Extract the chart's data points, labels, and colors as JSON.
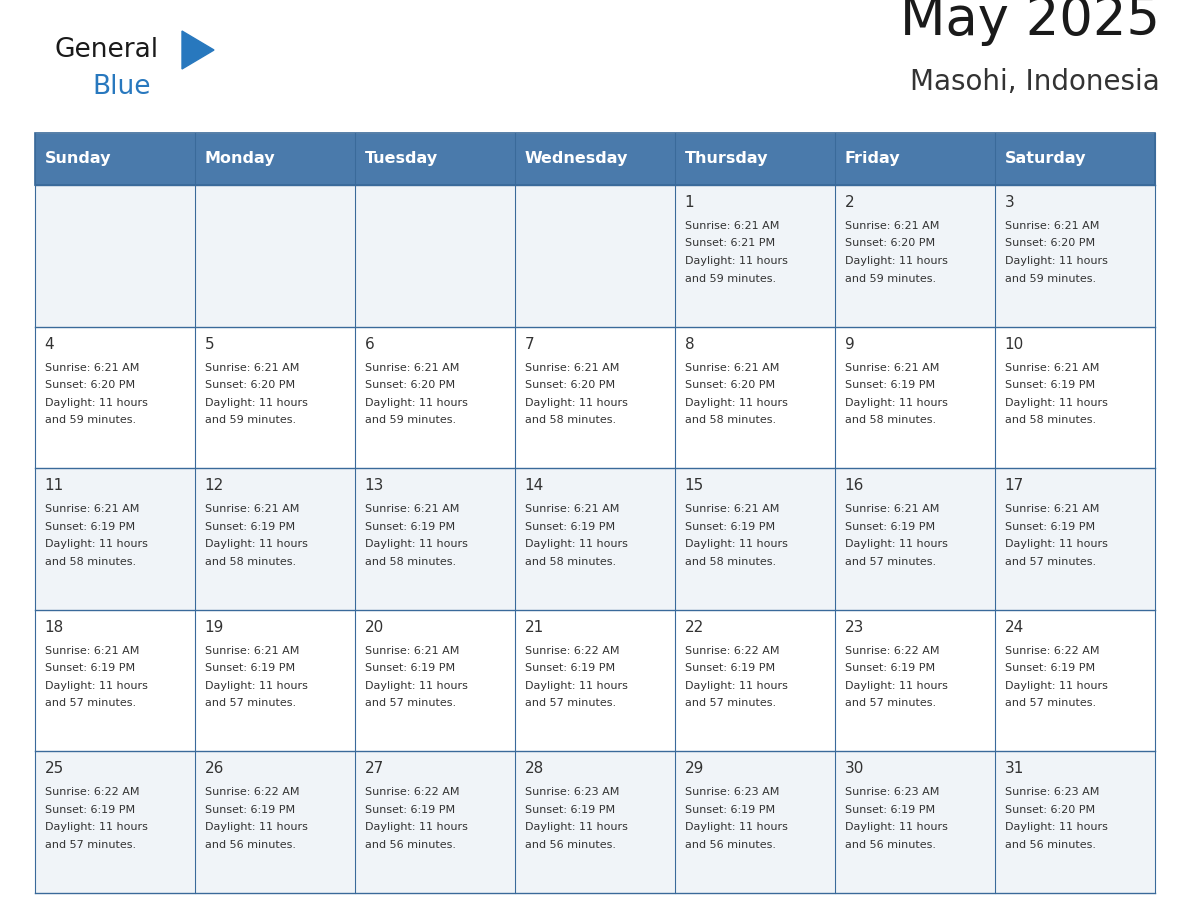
{
  "title": "May 2025",
  "subtitle": "Masohi, Indonesia",
  "days_of_week": [
    "Sunday",
    "Monday",
    "Tuesday",
    "Wednesday",
    "Thursday",
    "Friday",
    "Saturday"
  ],
  "header_bg": "#4a7aab",
  "header_text": "#FFFFFF",
  "row_bg_1": "#f0f4f8",
  "row_bg_2": "#ffffff",
  "cell_text": "#333333",
  "border_color": "#3a6a9a",
  "title_color": "#1a1a1a",
  "subtitle_color": "#333333",
  "logo_text_color": "#1a1a1a",
  "logo_blue_color": "#2878BE",
  "weeks": [
    [
      null,
      null,
      null,
      null,
      {
        "day": 1,
        "sunrise": "6:21 AM",
        "sunset": "6:21 PM",
        "daylight": "11 hours and 59 minutes."
      },
      {
        "day": 2,
        "sunrise": "6:21 AM",
        "sunset": "6:20 PM",
        "daylight": "11 hours and 59 minutes."
      },
      {
        "day": 3,
        "sunrise": "6:21 AM",
        "sunset": "6:20 PM",
        "daylight": "11 hours and 59 minutes."
      }
    ],
    [
      {
        "day": 4,
        "sunrise": "6:21 AM",
        "sunset": "6:20 PM",
        "daylight": "11 hours and 59 minutes."
      },
      {
        "day": 5,
        "sunrise": "6:21 AM",
        "sunset": "6:20 PM",
        "daylight": "11 hours and 59 minutes."
      },
      {
        "day": 6,
        "sunrise": "6:21 AM",
        "sunset": "6:20 PM",
        "daylight": "11 hours and 59 minutes."
      },
      {
        "day": 7,
        "sunrise": "6:21 AM",
        "sunset": "6:20 PM",
        "daylight": "11 hours and 58 minutes."
      },
      {
        "day": 8,
        "sunrise": "6:21 AM",
        "sunset": "6:20 PM",
        "daylight": "11 hours and 58 minutes."
      },
      {
        "day": 9,
        "sunrise": "6:21 AM",
        "sunset": "6:19 PM",
        "daylight": "11 hours and 58 minutes."
      },
      {
        "day": 10,
        "sunrise": "6:21 AM",
        "sunset": "6:19 PM",
        "daylight": "11 hours and 58 minutes."
      }
    ],
    [
      {
        "day": 11,
        "sunrise": "6:21 AM",
        "sunset": "6:19 PM",
        "daylight": "11 hours and 58 minutes."
      },
      {
        "day": 12,
        "sunrise": "6:21 AM",
        "sunset": "6:19 PM",
        "daylight": "11 hours and 58 minutes."
      },
      {
        "day": 13,
        "sunrise": "6:21 AM",
        "sunset": "6:19 PM",
        "daylight": "11 hours and 58 minutes."
      },
      {
        "day": 14,
        "sunrise": "6:21 AM",
        "sunset": "6:19 PM",
        "daylight": "11 hours and 58 minutes."
      },
      {
        "day": 15,
        "sunrise": "6:21 AM",
        "sunset": "6:19 PM",
        "daylight": "11 hours and 58 minutes."
      },
      {
        "day": 16,
        "sunrise": "6:21 AM",
        "sunset": "6:19 PM",
        "daylight": "11 hours and 57 minutes."
      },
      {
        "day": 17,
        "sunrise": "6:21 AM",
        "sunset": "6:19 PM",
        "daylight": "11 hours and 57 minutes."
      }
    ],
    [
      {
        "day": 18,
        "sunrise": "6:21 AM",
        "sunset": "6:19 PM",
        "daylight": "11 hours and 57 minutes."
      },
      {
        "day": 19,
        "sunrise": "6:21 AM",
        "sunset": "6:19 PM",
        "daylight": "11 hours and 57 minutes."
      },
      {
        "day": 20,
        "sunrise": "6:21 AM",
        "sunset": "6:19 PM",
        "daylight": "11 hours and 57 minutes."
      },
      {
        "day": 21,
        "sunrise": "6:22 AM",
        "sunset": "6:19 PM",
        "daylight": "11 hours and 57 minutes."
      },
      {
        "day": 22,
        "sunrise": "6:22 AM",
        "sunset": "6:19 PM",
        "daylight": "11 hours and 57 minutes."
      },
      {
        "day": 23,
        "sunrise": "6:22 AM",
        "sunset": "6:19 PM",
        "daylight": "11 hours and 57 minutes."
      },
      {
        "day": 24,
        "sunrise": "6:22 AM",
        "sunset": "6:19 PM",
        "daylight": "11 hours and 57 minutes."
      }
    ],
    [
      {
        "day": 25,
        "sunrise": "6:22 AM",
        "sunset": "6:19 PM",
        "daylight": "11 hours and 57 minutes."
      },
      {
        "day": 26,
        "sunrise": "6:22 AM",
        "sunset": "6:19 PM",
        "daylight": "11 hours and 56 minutes."
      },
      {
        "day": 27,
        "sunrise": "6:22 AM",
        "sunset": "6:19 PM",
        "daylight": "11 hours and 56 minutes."
      },
      {
        "day": 28,
        "sunrise": "6:23 AM",
        "sunset": "6:19 PM",
        "daylight": "11 hours and 56 minutes."
      },
      {
        "day": 29,
        "sunrise": "6:23 AM",
        "sunset": "6:19 PM",
        "daylight": "11 hours and 56 minutes."
      },
      {
        "day": 30,
        "sunrise": "6:23 AM",
        "sunset": "6:19 PM",
        "daylight": "11 hours and 56 minutes."
      },
      {
        "day": 31,
        "sunrise": "6:23 AM",
        "sunset": "6:20 PM",
        "daylight": "11 hours and 56 minutes."
      }
    ]
  ]
}
